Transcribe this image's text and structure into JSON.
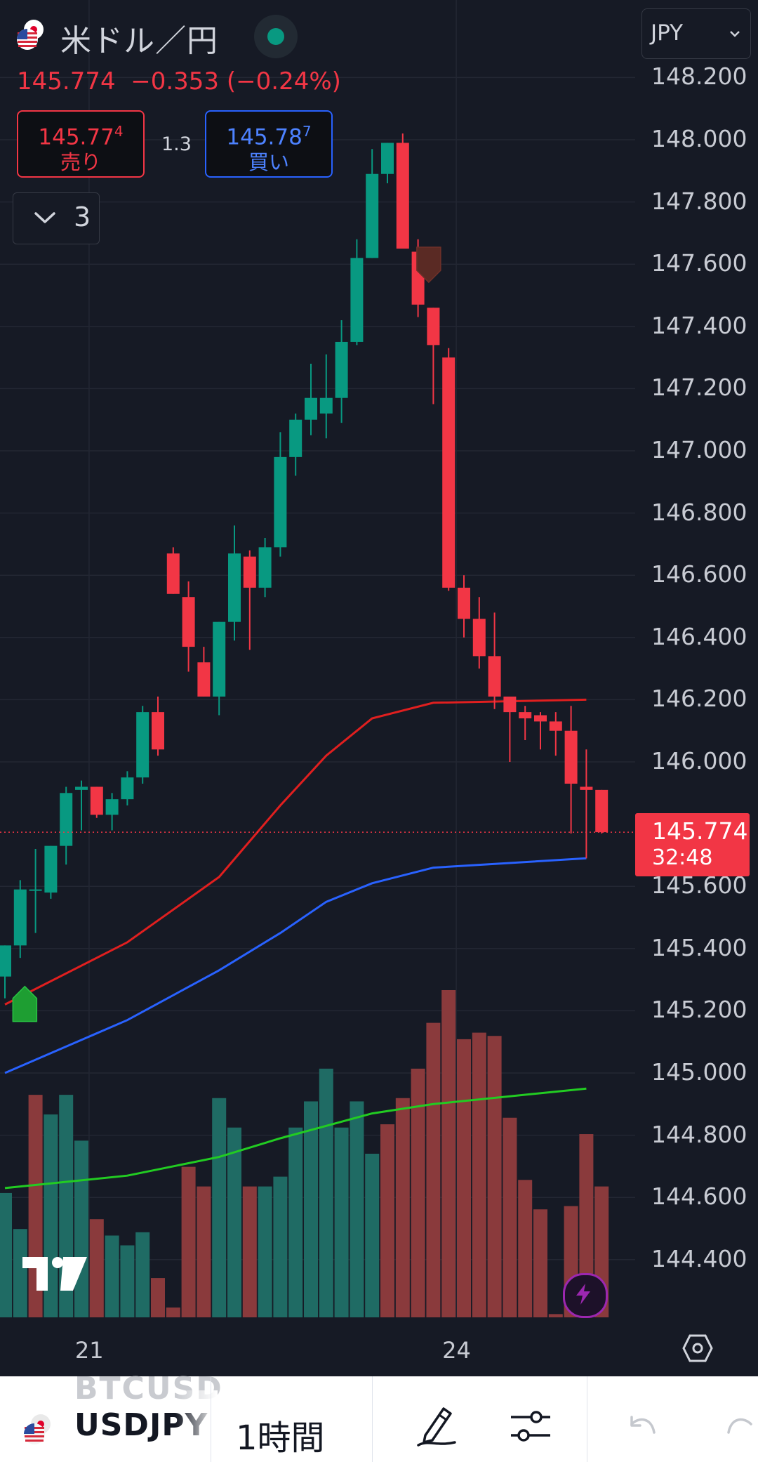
{
  "header": {
    "pair_name": "米ドル／円",
    "last_price": "145.774",
    "change": "−0.353",
    "change_pct": "(−0.24%)",
    "spread": "1.3",
    "sell": {
      "price_main": "145.77",
      "price_sup": "4",
      "label": "売り"
    },
    "buy": {
      "price_main": "145.78",
      "price_sup": "7",
      "label": "買い"
    },
    "collapse_count": "3",
    "currency": "JPY",
    "market_status": "open"
  },
  "current_price_tag": {
    "price": "145.774",
    "countdown": "32:48"
  },
  "colors": {
    "background": "#161a25",
    "up": "#089981",
    "down": "#f23645",
    "ma_red": "#e01f1f",
    "ma_blue": "#2962ff",
    "ma_green": "#22cc22",
    "volume_up": "#1f6b64",
    "volume_down": "#8a3a3c"
  },
  "chart_data": {
    "type": "candlestick",
    "symbol": "USDJPY",
    "interval": "1時間",
    "y_axis_labels": [
      "148.200",
      "148.000",
      "147.800",
      "147.600",
      "147.400",
      "147.200",
      "147.000",
      "146.800",
      "146.600",
      "146.400",
      "146.200",
      "146.000",
      "145.600",
      "145.400",
      "145.200",
      "145.000",
      "144.800",
      "144.600",
      "144.400"
    ],
    "ylim": [
      144.3,
      148.3
    ],
    "x_axis_labels": [
      {
        "label": "21",
        "bar": 5.5
      },
      {
        "label": "24",
        "bar": 29.5
      }
    ],
    "candles": [
      {
        "o": 145.31,
        "h": 145.41,
        "l": 145.24,
        "c": 145.41
      },
      {
        "o": 145.41,
        "h": 145.62,
        "l": 145.37,
        "c": 145.59
      },
      {
        "o": 145.59,
        "h": 145.72,
        "l": 145.45,
        "c": 145.59
      },
      {
        "o": 145.58,
        "h": 145.73,
        "l": 145.56,
        "c": 145.73
      },
      {
        "o": 145.73,
        "h": 145.92,
        "l": 145.67,
        "c": 145.9
      },
      {
        "o": 145.91,
        "h": 145.94,
        "l": 145.78,
        "c": 145.92
      },
      {
        "o": 145.92,
        "h": 145.92,
        "l": 145.82,
        "c": 145.83
      },
      {
        "o": 145.83,
        "h": 145.9,
        "l": 145.78,
        "c": 145.88
      },
      {
        "o": 145.88,
        "h": 145.97,
        "l": 145.86,
        "c": 145.95
      },
      {
        "o": 145.95,
        "h": 146.18,
        "l": 145.93,
        "c": 146.16
      },
      {
        "o": 146.16,
        "h": 146.21,
        "l": 146.02,
        "c": 146.04
      },
      {
        "o": 146.67,
        "h": 146.69,
        "l": 146.54,
        "c": 146.54
      },
      {
        "o": 146.53,
        "h": 146.58,
        "l": 146.29,
        "c": 146.37
      },
      {
        "o": 146.32,
        "h": 146.37,
        "l": 146.21,
        "c": 146.21
      },
      {
        "o": 146.21,
        "h": 146.42,
        "l": 146.15,
        "c": 146.45
      },
      {
        "o": 146.45,
        "h": 146.76,
        "l": 146.39,
        "c": 146.67
      },
      {
        "o": 146.66,
        "h": 146.68,
        "l": 146.36,
        "c": 146.56
      },
      {
        "o": 146.56,
        "h": 146.72,
        "l": 146.53,
        "c": 146.69
      },
      {
        "o": 146.69,
        "h": 147.06,
        "l": 146.66,
        "c": 146.98
      },
      {
        "o": 146.98,
        "h": 147.12,
        "l": 146.92,
        "c": 147.1
      },
      {
        "o": 147.1,
        "h": 147.28,
        "l": 147.05,
        "c": 147.17
      },
      {
        "o": 147.12,
        "h": 147.31,
        "l": 147.04,
        "c": 147.17
      },
      {
        "o": 147.17,
        "h": 147.42,
        "l": 147.09,
        "c": 147.35
      },
      {
        "o": 147.35,
        "h": 147.68,
        "l": 147.34,
        "c": 147.62
      },
      {
        "o": 147.62,
        "h": 147.97,
        "l": 147.62,
        "c": 147.89
      },
      {
        "o": 147.89,
        "h": 147.99,
        "l": 147.86,
        "c": 147.99
      },
      {
        "o": 147.99,
        "h": 148.02,
        "l": 147.65,
        "c": 147.65
      },
      {
        "o": 147.64,
        "h": 147.68,
        "l": 147.43,
        "c": 147.47
      },
      {
        "o": 147.46,
        "h": 147.43,
        "l": 147.15,
        "c": 147.34
      },
      {
        "o": 147.3,
        "h": 147.33,
        "l": 146.55,
        "c": 146.56
      },
      {
        "o": 146.56,
        "h": 146.6,
        "l": 146.4,
        "c": 146.46
      },
      {
        "o": 146.46,
        "h": 146.53,
        "l": 146.3,
        "c": 146.34
      },
      {
        "o": 146.34,
        "h": 146.48,
        "l": 146.17,
        "c": 146.21
      },
      {
        "o": 146.21,
        "h": 146.21,
        "l": 146.0,
        "c": 146.16
      },
      {
        "o": 146.16,
        "h": 146.18,
        "l": 146.07,
        "c": 146.14
      },
      {
        "o": 146.15,
        "h": 146.16,
        "l": 146.04,
        "c": 146.13
      },
      {
        "o": 146.13,
        "h": 146.16,
        "l": 146.02,
        "c": 146.1
      },
      {
        "o": 146.1,
        "h": 146.18,
        "l": 145.77,
        "c": 145.93
      },
      {
        "o": 145.92,
        "h": 146.04,
        "l": 145.69,
        "c": 145.91
      },
      {
        "o": 145.91,
        "h": 145.91,
        "l": 145.77,
        "c": 145.774
      }
    ],
    "volume": [
      {
        "v": 0.38,
        "up": true
      },
      {
        "v": 0.27,
        "up": true
      },
      {
        "v": 0.68,
        "up": false
      },
      {
        "v": 0.62,
        "up": true
      },
      {
        "v": 0.68,
        "up": true
      },
      {
        "v": 0.54,
        "up": true
      },
      {
        "v": 0.3,
        "up": false
      },
      {
        "v": 0.25,
        "up": true
      },
      {
        "v": 0.22,
        "up": true
      },
      {
        "v": 0.26,
        "up": true
      },
      {
        "v": 0.12,
        "up": false
      },
      {
        "v": 0.03,
        "up": false
      },
      {
        "v": 0.46,
        "up": false
      },
      {
        "v": 0.4,
        "up": false
      },
      {
        "v": 0.67,
        "up": true
      },
      {
        "v": 0.58,
        "up": true
      },
      {
        "v": 0.4,
        "up": false
      },
      {
        "v": 0.4,
        "up": true
      },
      {
        "v": 0.43,
        "up": true
      },
      {
        "v": 0.58,
        "up": true
      },
      {
        "v": 0.66,
        "up": true
      },
      {
        "v": 0.76,
        "up": true
      },
      {
        "v": 0.58,
        "up": true
      },
      {
        "v": 0.66,
        "up": true
      },
      {
        "v": 0.5,
        "up": true
      },
      {
        "v": 0.59,
        "up": false
      },
      {
        "v": 0.67,
        "up": false
      },
      {
        "v": 0.76,
        "up": false
      },
      {
        "v": 0.9,
        "up": false
      },
      {
        "v": 1.0,
        "up": false
      },
      {
        "v": 0.85,
        "up": false
      },
      {
        "v": 0.87,
        "up": false
      },
      {
        "v": 0.86,
        "up": false
      },
      {
        "v": 0.61,
        "up": false
      },
      {
        "v": 0.42,
        "up": false
      },
      {
        "v": 0.33,
        "up": false
      },
      {
        "v": 0.01,
        "up": false
      },
      {
        "v": 0.34,
        "up": false
      },
      {
        "v": 0.56,
        "up": false
      },
      {
        "v": 0.4,
        "up": false
      }
    ],
    "ma_lines": [
      {
        "color": "red",
        "points": [
          [
            0,
            145.22
          ],
          [
            8,
            145.42
          ],
          [
            14,
            145.63
          ],
          [
            18,
            145.86
          ],
          [
            21,
            146.02
          ],
          [
            24,
            146.14
          ],
          [
            28,
            146.19
          ],
          [
            38,
            146.2
          ]
        ]
      },
      {
        "color": "blue",
        "points": [
          [
            0,
            145.0
          ],
          [
            8,
            145.17
          ],
          [
            14,
            145.33
          ],
          [
            18,
            145.45
          ],
          [
            21,
            145.55
          ],
          [
            24,
            145.61
          ],
          [
            28,
            145.66
          ],
          [
            38,
            145.69
          ]
        ]
      },
      {
        "color": "green",
        "points": [
          [
            0,
            144.63
          ],
          [
            8,
            144.67
          ],
          [
            14,
            144.73
          ],
          [
            18,
            144.79
          ],
          [
            21,
            144.83
          ],
          [
            24,
            144.87
          ],
          [
            28,
            144.9
          ],
          [
            38,
            144.95
          ]
        ]
      }
    ],
    "markers": [
      {
        "type": "buy-arrow",
        "bar": 1.3,
        "price": 145.24
      },
      {
        "type": "sell-arrow",
        "bar": 27.7,
        "price": 147.58
      }
    ]
  },
  "toolbar": {
    "ghost_symbol": "BTCUSD",
    "symbol": "USDJPY",
    "interval": "1時間"
  }
}
